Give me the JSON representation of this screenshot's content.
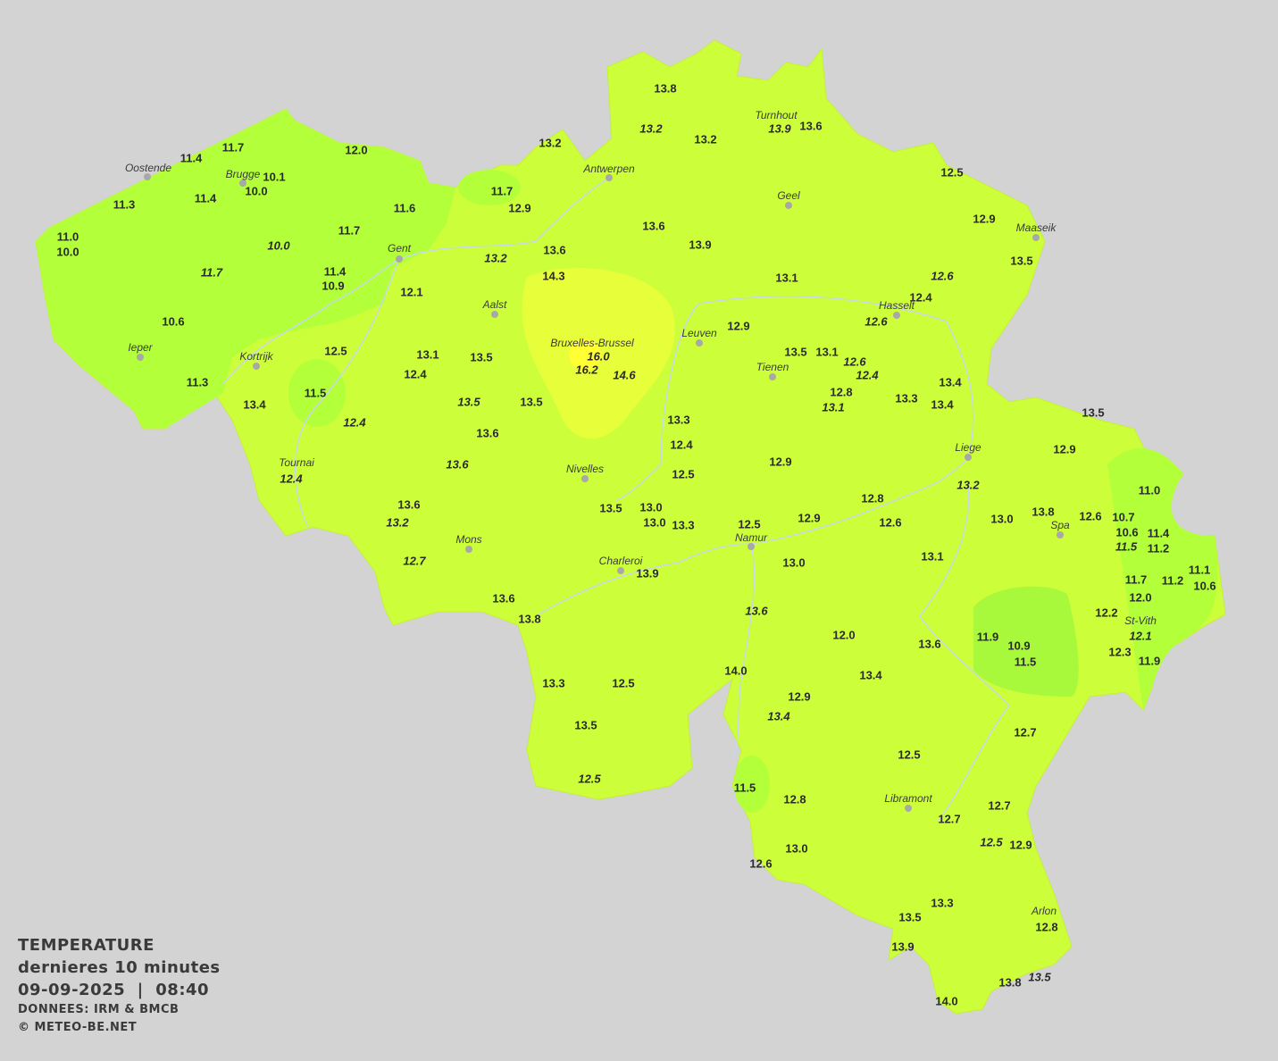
{
  "legend": {
    "title": "TEMPERATURE",
    "period": "dernieres 10 minutes",
    "datetime": "09-09-2025  |  08:40",
    "source": "DONNEES: IRM & BMCB",
    "copyright": "© METEO-BE.NET"
  },
  "colors": {
    "background": "#d3d3d3",
    "base": "#ccff3a",
    "cool": "#b2ff3a",
    "cooler": "#a8f83c",
    "warm": "#e6ff3a",
    "hot": "#ffff33",
    "text": "#2b2b2b"
  },
  "cities": [
    "Oostende",
    "Brugge",
    "Antwerpen",
    "Turnhout",
    "Geel",
    "Maaseik",
    "Gent",
    "Aalst",
    "Hasselt",
    "Leuven",
    "Bruxelles-Brussel",
    "Ieper",
    "Kortrijk",
    "Tienen",
    "Liege",
    "Tournai",
    "Nivelles",
    "Spa",
    "Namur",
    "Mons",
    "Charleroi",
    "St-Vith",
    "Libramont",
    "Arlon"
  ],
  "stations": [
    {
      "v": "13.8"
    },
    {
      "v": "13.2",
      "i": true
    },
    {
      "v": "13.2"
    },
    {
      "v": "13.9",
      "i": true
    },
    {
      "v": "13.6"
    },
    {
      "v": "13.2"
    },
    {
      "v": "11.7"
    },
    {
      "v": "11.4"
    },
    {
      "v": "12.0"
    },
    {
      "v": "10.1"
    },
    {
      "v": "10.0"
    },
    {
      "v": "11.3"
    },
    {
      "v": "11.4"
    },
    {
      "v": "11.7"
    },
    {
      "v": "12.9"
    },
    {
      "v": "12.5"
    },
    {
      "v": "11.6"
    },
    {
      "v": "11.0"
    },
    {
      "v": "10.0"
    },
    {
      "v": "12.9"
    },
    {
      "v": "13.6"
    },
    {
      "v": "13.9"
    },
    {
      "v": "11.7"
    },
    {
      "v": "10.0",
      "i": true
    },
    {
      "v": "13.6"
    },
    {
      "v": "13.2",
      "i": true
    },
    {
      "v": "13.5"
    },
    {
      "v": "11.7",
      "i": true
    },
    {
      "v": "11.4"
    },
    {
      "v": "10.9"
    },
    {
      "v": "14.3"
    },
    {
      "v": "13.1"
    },
    {
      "v": "12.6",
      "i": true
    },
    {
      "v": "12.4"
    },
    {
      "v": "12.1"
    },
    {
      "v": "12.6",
      "i": true
    },
    {
      "v": "10.6"
    },
    {
      "v": "12.9"
    },
    {
      "v": "12.5"
    },
    {
      "v": "13.1"
    },
    {
      "v": "13.5"
    },
    {
      "v": "16.0",
      "i": true
    },
    {
      "v": "16.2",
      "i": true
    },
    {
      "v": "14.6",
      "i": true
    },
    {
      "v": "13.5"
    },
    {
      "v": "13.1"
    },
    {
      "v": "12.6",
      "i": true
    },
    {
      "v": "12.4",
      "i": true
    },
    {
      "v": "12.4"
    },
    {
      "v": "11.3"
    },
    {
      "v": "11.5"
    },
    {
      "v": "13.4"
    },
    {
      "v": "13.5",
      "i": true
    },
    {
      "v": "13.5"
    },
    {
      "v": "12.8"
    },
    {
      "v": "13.1",
      "i": true
    },
    {
      "v": "13.3"
    },
    {
      "v": "13.4"
    },
    {
      "v": "13.4"
    },
    {
      "v": "13.5"
    },
    {
      "v": "13.3"
    },
    {
      "v": "12.4",
      "i": true
    },
    {
      "v": "13.6"
    },
    {
      "v": "12.4"
    },
    {
      "v": "12.9"
    },
    {
      "v": "12.9"
    },
    {
      "v": "13.6",
      "i": true
    },
    {
      "v": "12.4",
      "i": true
    },
    {
      "v": "12.5"
    },
    {
      "v": "13.2",
      "i": true
    },
    {
      "v": "11.0"
    },
    {
      "v": "12.8"
    },
    {
      "v": "13.6"
    },
    {
      "v": "13.5"
    },
    {
      "v": "13.0"
    },
    {
      "v": "13.0"
    },
    {
      "v": "13.3"
    },
    {
      "v": "12.5"
    },
    {
      "v": "12.9"
    },
    {
      "v": "12.6"
    },
    {
      "v": "13.0"
    },
    {
      "v": "13.8"
    },
    {
      "v": "12.6"
    },
    {
      "v": "10.7"
    },
    {
      "v": "10.6"
    },
    {
      "v": "11.4"
    },
    {
      "v": "11.5",
      "i": true
    },
    {
      "v": "11.2"
    },
    {
      "v": "13.2",
      "i": true
    },
    {
      "v": "12.7",
      "i": true
    },
    {
      "v": "13.1"
    },
    {
      "v": "13.0"
    },
    {
      "v": "13.9"
    },
    {
      "v": "11.1"
    },
    {
      "v": "11.2"
    },
    {
      "v": "10.6"
    },
    {
      "v": "11.7"
    },
    {
      "v": "12.0"
    },
    {
      "v": "13.6"
    },
    {
      "v": "13.8"
    },
    {
      "v": "13.6",
      "i": true
    },
    {
      "v": "12.2"
    },
    {
      "v": "12.1",
      "i": true
    },
    {
      "v": "12.0"
    },
    {
      "v": "11.9"
    },
    {
      "v": "10.9"
    },
    {
      "v": "13.6"
    },
    {
      "v": "12.3"
    },
    {
      "v": "11.5"
    },
    {
      "v": "11.9"
    },
    {
      "v": "14.0"
    },
    {
      "v": "13.4"
    },
    {
      "v": "13.3"
    },
    {
      "v": "12.5"
    },
    {
      "v": "12.9"
    },
    {
      "v": "13.4",
      "i": true
    },
    {
      "v": "13.5"
    },
    {
      "v": "12.7"
    },
    {
      "v": "12.5"
    },
    {
      "v": "12.5",
      "i": true
    },
    {
      "v": "11.5"
    },
    {
      "v": "12.8"
    },
    {
      "v": "12.7"
    },
    {
      "v": "12.7"
    },
    {
      "v": "12.5",
      "i": true
    },
    {
      "v": "12.9"
    },
    {
      "v": "13.0"
    },
    {
      "v": "12.6"
    },
    {
      "v": "13.3"
    },
    {
      "v": "13.5"
    },
    {
      "v": "12.8"
    },
    {
      "v": "13.9"
    },
    {
      "v": "13.8"
    },
    {
      "v": "13.5",
      "i": true
    },
    {
      "v": "14.0"
    }
  ]
}
